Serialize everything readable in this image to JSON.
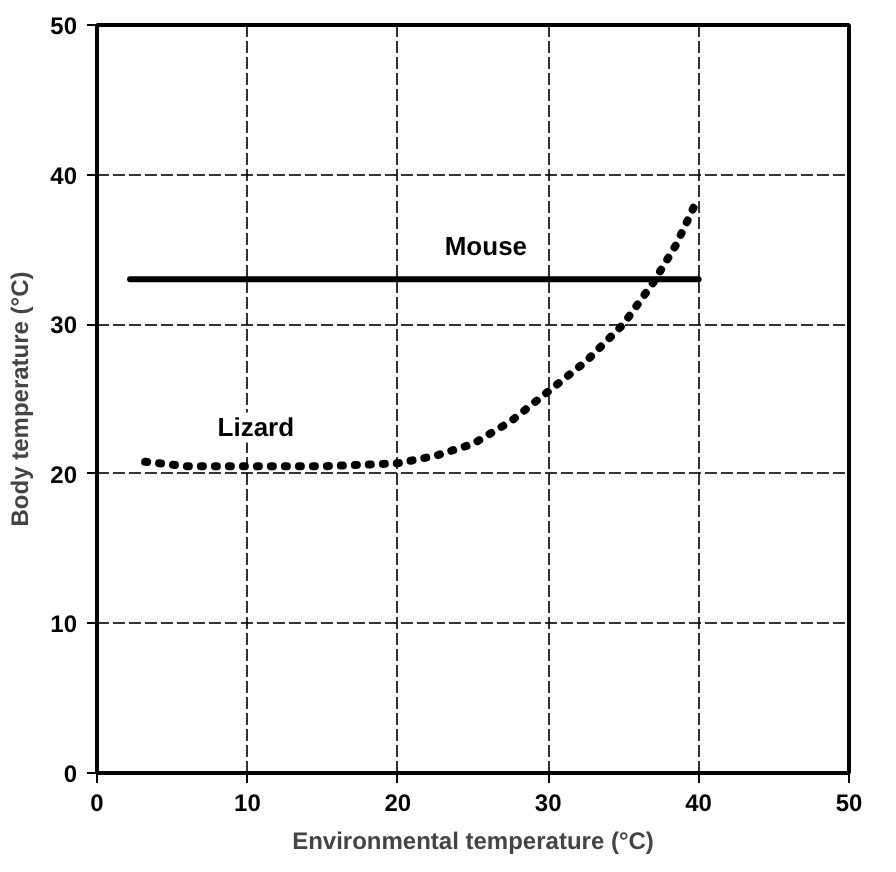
{
  "chart_data": {
    "type": "line",
    "xlabel": "Environmental temperature (°C)",
    "ylabel": "Body temperature (°C)",
    "xlim": [
      0,
      50
    ],
    "ylim": [
      0,
      50
    ],
    "xticks": [
      0,
      10,
      20,
      30,
      40,
      50
    ],
    "yticks": [
      0,
      10,
      20,
      30,
      40,
      50
    ],
    "grid": true,
    "series": [
      {
        "name": "Mouse",
        "color": "#000000",
        "line_style": "solid",
        "x": [
          2.2,
          40
        ],
        "values": [
          33,
          33
        ]
      },
      {
        "name": "Lizard",
        "color": "#000000",
        "line_style": "dotted",
        "x": [
          3.2,
          6,
          10,
          15,
          20,
          22.5,
          25,
          27.5,
          30,
          32.5,
          35,
          37,
          38.5,
          40
        ],
        "values": [
          20.8,
          20.5,
          20.5,
          20.5,
          20.7,
          21.2,
          22,
          23.5,
          25.5,
          27.5,
          30,
          32.8,
          35.3,
          38.5
        ]
      }
    ]
  }
}
